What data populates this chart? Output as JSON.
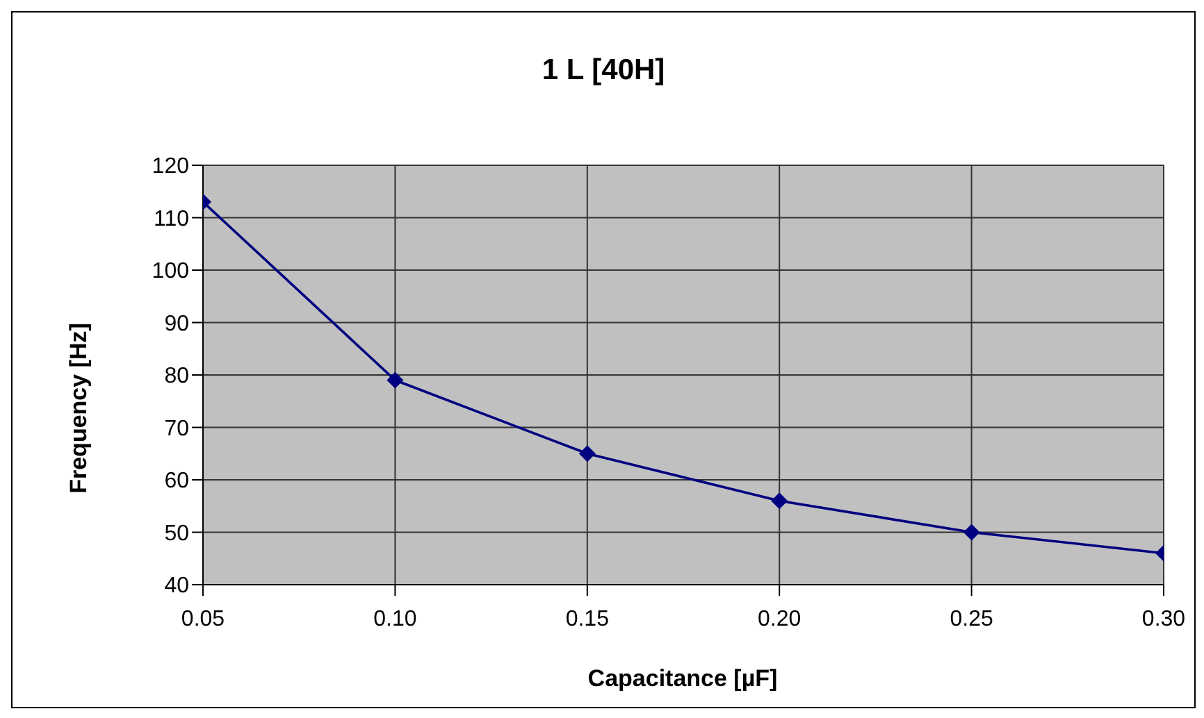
{
  "chart_data": {
    "type": "line",
    "title": "1 L [40H]",
    "xlabel": "Capacitance [µF]",
    "ylabel": "Frequency [Hz]",
    "x": [
      0.05,
      0.1,
      0.15,
      0.2,
      0.25,
      0.3
    ],
    "series": [
      {
        "color": "#000080",
        "values": [
          113,
          79,
          65,
          56,
          50,
          46
        ]
      }
    ],
    "xlim": [
      0.05,
      0.3
    ],
    "xticks": [
      {
        "value": 0.05,
        "label": "0.05"
      },
      {
        "value": 0.1,
        "label": "0.10"
      },
      {
        "value": 0.15,
        "label": "0.15"
      },
      {
        "value": 0.2,
        "label": "0.20"
      },
      {
        "value": 0.25,
        "label": "0.25"
      },
      {
        "value": 0.3,
        "label": "0.30"
      }
    ],
    "ylim": [
      40,
      120
    ],
    "yticks": [
      40,
      50,
      60,
      70,
      80,
      90,
      100,
      110,
      120
    ],
    "grid": true,
    "marker": "diamond",
    "line_style": "solid",
    "legend": false
  }
}
